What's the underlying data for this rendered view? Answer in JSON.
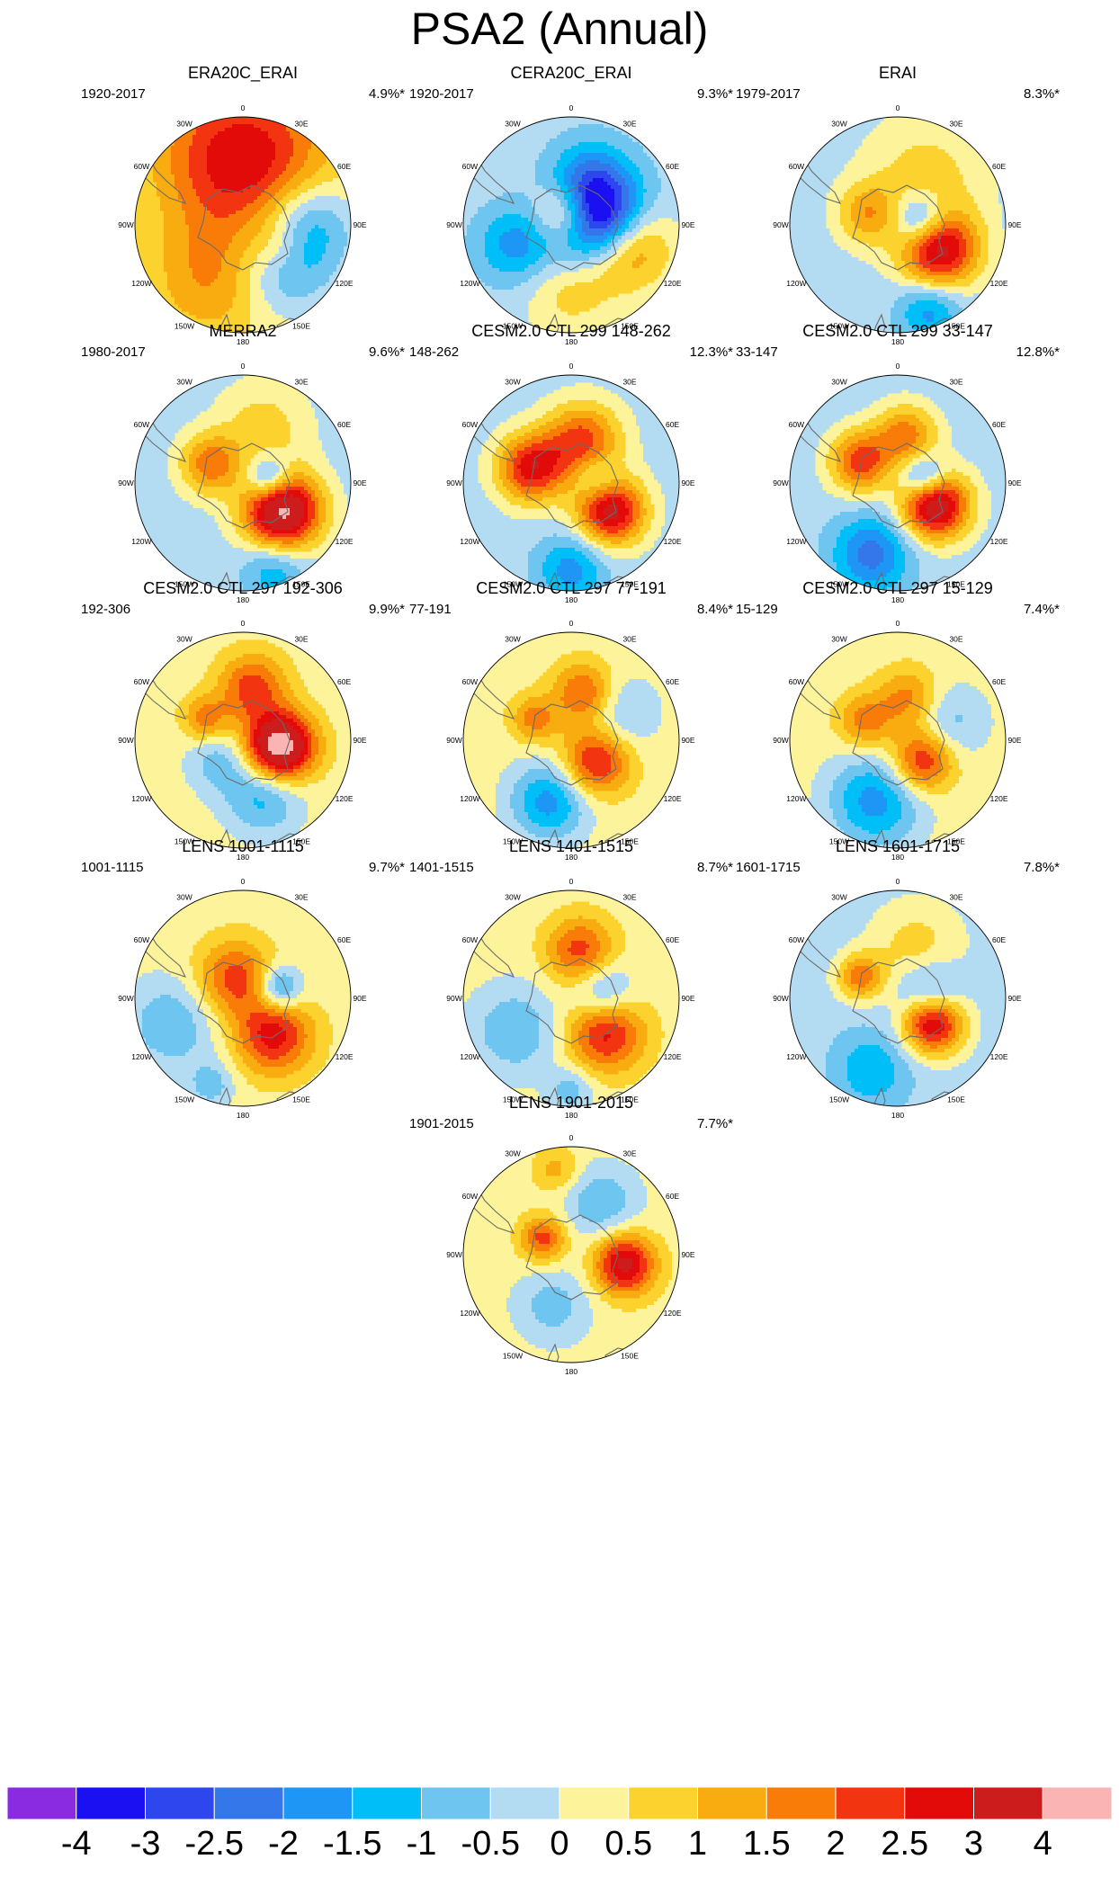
{
  "title": "PSA2 (Annual)",
  "chart_data": {
    "type": "contour-map",
    "projection": "south polar stereographic",
    "longitude_labels": [
      "0",
      "30E",
      "60E",
      "90E",
      "120E",
      "150E",
      "180",
      "150W",
      "120W",
      "90W",
      "60W",
      "30W"
    ],
    "colorbar": {
      "labels": [
        "-4",
        "-3",
        "-2.5",
        "-2",
        "-1.5",
        "-1",
        "-0.5",
        "0",
        "0.5",
        "1",
        "1.5",
        "2",
        "2.5",
        "3",
        "4"
      ],
      "colors": [
        "#8a2be2",
        "#1a10f2",
        "#2d46ee",
        "#3477ea",
        "#1e96f5",
        "#00bff8",
        "#6ec6f0",
        "#b3dcf2",
        "#fcf39a",
        "#fbd22e",
        "#f8ac10",
        "#f97c08",
        "#f33410",
        "#e30a0a",
        "#cc1c1c",
        "#fbb4b4"
      ]
    },
    "panels": [
      {
        "title": "ERA20C_ERAI",
        "period": "1920-2017",
        "variance": "4.9%*",
        "base": 8.5,
        "blobs": [
          [
            0,
            0.5,
            0.55,
            4.5
          ],
          [
            120,
            0.4,
            0.2,
            1.2
          ],
          [
            135,
            0.5,
            0.3,
            -1.5
          ],
          [
            0,
            0.25,
            0.6,
            -2
          ],
          [
            210,
            0.55,
            0.4,
            1.5
          ],
          [
            90,
            0.6,
            0.3,
            -1.5
          ]
        ]
      },
      {
        "title": "CERA20C_ERAI",
        "period": "1920-2017",
        "variance": "9.3%*",
        "base": 7.5,
        "blobs": [
          [
            75,
            0.25,
            0.3,
            -4.5
          ],
          [
            110,
            0.55,
            0.28,
            2.5
          ],
          [
            330,
            0.12,
            0.2,
            2.5
          ],
          [
            250,
            0.55,
            0.25,
            -1.5
          ],
          [
            20,
            0.5,
            0.25,
            -1
          ],
          [
            180,
            0.6,
            0.3,
            1
          ]
        ]
      },
      {
        "title": "ERAI",
        "period": "1979-2017",
        "variance": "8.3%*",
        "base": 7.5,
        "blobs": [
          [
            120,
            0.45,
            0.25,
            3.5
          ],
          [
            80,
            0.22,
            0.18,
            -2
          ],
          [
            290,
            0.3,
            0.2,
            1.5
          ],
          [
            160,
            0.85,
            0.2,
            -1.5
          ],
          [
            30,
            0.5,
            0.4,
            1
          ]
        ]
      },
      {
        "title": "MERRA2",
        "period": "1980-2017",
        "variance": "9.6%*",
        "base": 7.5,
        "blobs": [
          [
            125,
            0.45,
            0.25,
            4.5
          ],
          [
            80,
            0.25,
            0.15,
            -2
          ],
          [
            300,
            0.35,
            0.2,
            2
          ],
          [
            160,
            0.85,
            0.2,
            -1.2
          ],
          [
            20,
            0.55,
            0.3,
            1
          ]
        ]
      },
      {
        "title": "CESM2.0 CTL 299 148-262",
        "period": "148-262",
        "variance": "12.3%*",
        "base": 7.5,
        "blobs": [
          [
            125,
            0.45,
            0.22,
            3.5
          ],
          [
            290,
            0.4,
            0.22,
            3
          ],
          [
            15,
            0.4,
            0.25,
            2.5
          ],
          [
            180,
            0.8,
            0.22,
            -1.5
          ],
          [
            80,
            0.25,
            0.15,
            -1.2
          ]
        ]
      },
      {
        "title": "CESM2.0 CTL 299 33-147",
        "period": "33-147",
        "variance": "12.8%*",
        "base": 7.5,
        "blobs": [
          [
            120,
            0.4,
            0.22,
            4
          ],
          [
            300,
            0.4,
            0.2,
            2.5
          ],
          [
            10,
            0.45,
            0.2,
            2
          ],
          [
            200,
            0.7,
            0.25,
            -2
          ],
          [
            80,
            0.25,
            0.15,
            -2
          ]
        ]
      },
      {
        "title": "CESM2.0 CTL 297 192-306",
        "period": "192-306",
        "variance": "9.9%*",
        "base": 8.5,
        "blobs": [
          [
            100,
            0.35,
            0.22,
            4.5
          ],
          [
            10,
            0.5,
            0.22,
            2
          ],
          [
            300,
            0.4,
            0.15,
            1.5
          ],
          [
            160,
            0.55,
            0.25,
            -1.5
          ],
          [
            230,
            0.3,
            0.2,
            -1
          ]
        ]
      },
      {
        "title": "CESM2.0 CTL 297 77-191",
        "period": "77-191",
        "variance": "8.4%*",
        "base": 8.5,
        "blobs": [
          [
            130,
            0.3,
            0.22,
            2.5
          ],
          [
            15,
            0.45,
            0.2,
            2
          ],
          [
            300,
            0.4,
            0.15,
            1.5
          ],
          [
            200,
            0.6,
            0.25,
            -2
          ],
          [
            60,
            0.5,
            0.25,
            -1
          ]
        ]
      },
      {
        "title": "CESM2.0 CTL 297 15-129",
        "period": "15-129",
        "variance": "7.4%*",
        "base": 8.5,
        "blobs": [
          [
            130,
            0.3,
            0.2,
            2.5
          ],
          [
            15,
            0.4,
            0.2,
            1.5
          ],
          [
            300,
            0.35,
            0.18,
            1.5
          ],
          [
            200,
            0.6,
            0.3,
            -2
          ],
          [
            70,
            0.5,
            0.25,
            -1
          ]
        ]
      },
      {
        "title": "LENS 1001-1115",
        "period": "1001-1115",
        "variance": "9.7%*",
        "base": 8.5,
        "blobs": [
          [
            140,
            0.45,
            0.25,
            2.5
          ],
          [
            340,
            0.2,
            0.25,
            2
          ],
          [
            75,
            0.35,
            0.15,
            -2
          ],
          [
            250,
            0.7,
            0.3,
            -1.2
          ],
          [
            200,
            0.85,
            0.15,
            -1
          ]
        ]
      },
      {
        "title": "LENS 1401-1515",
        "period": "1401-1515",
        "variance": "8.7%*",
        "base": 8.5,
        "blobs": [
          [
            135,
            0.45,
            0.25,
            2.5
          ],
          [
            10,
            0.45,
            0.22,
            2
          ],
          [
            80,
            0.3,
            0.2,
            -1.5
          ],
          [
            240,
            0.6,
            0.3,
            -1.2
          ],
          [
            180,
            0.85,
            0.15,
            -1
          ]
        ]
      },
      {
        "title": "LENS 1601-1715",
        "period": "1601-1715",
        "variance": "7.8%*",
        "base": 7.5,
        "blobs": [
          [
            125,
            0.4,
            0.2,
            3.5
          ],
          [
            300,
            0.4,
            0.15,
            2
          ],
          [
            80,
            0.3,
            0.2,
            -1.5
          ],
          [
            200,
            0.7,
            0.25,
            -1.2
          ],
          [
            20,
            0.5,
            0.3,
            1
          ]
        ]
      },
      {
        "title": "LENS 1901-2015",
        "period": "1901-2015",
        "variance": "7.7%*",
        "base": 8.5,
        "blobs": [
          [
            100,
            0.5,
            0.2,
            3
          ],
          [
            300,
            0.3,
            0.15,
            2
          ],
          [
            30,
            0.55,
            0.25,
            -1.2
          ],
          [
            200,
            0.5,
            0.25,
            -1
          ],
          [
            350,
            0.8,
            0.15,
            1
          ]
        ]
      }
    ]
  }
}
